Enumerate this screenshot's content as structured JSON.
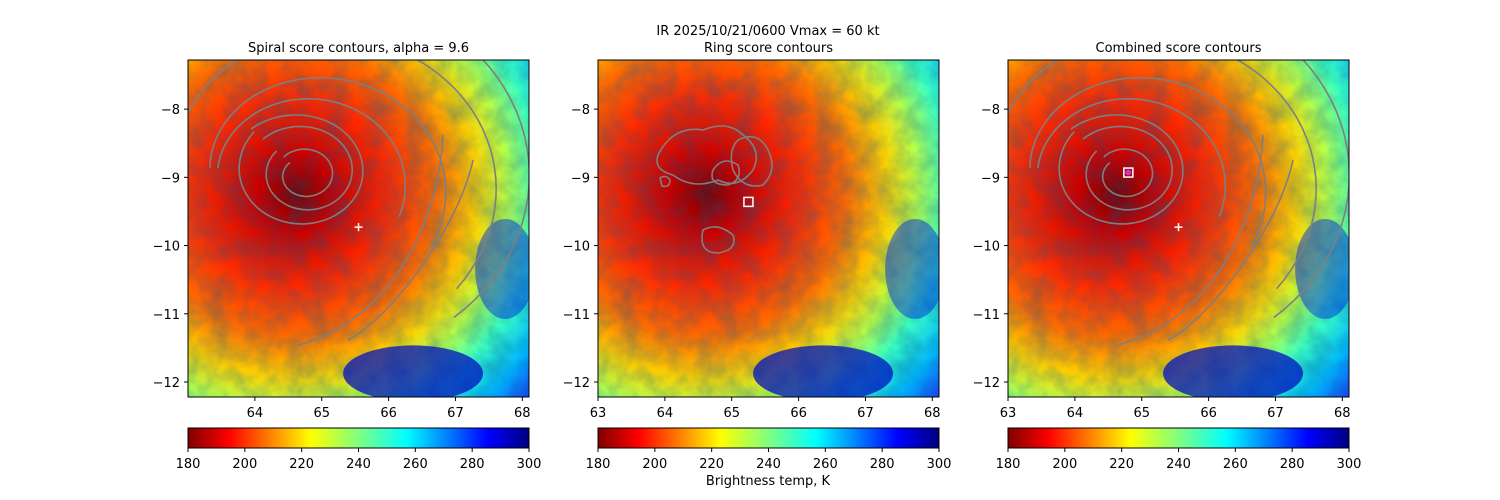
{
  "suptitle": "IR  2025/10/21/0600    Vmax = 60 kt",
  "colorbar_label": "Brightness temp, K",
  "contour_color": "#7f7f7f",
  "colormap": "jet_r",
  "chart_data": [
    {
      "type": "heatmap",
      "title": "Spiral score contours, alpha =  9.6",
      "xlim": [
        63.0,
        68.1
      ],
      "ylim": [
        -12.22,
        -7.28
      ],
      "xticks": [
        64,
        65,
        66,
        67,
        68
      ],
      "yticks": [
        -8,
        -9,
        -10,
        -11,
        -12
      ],
      "grid": false,
      "markers": [
        {
          "symbol": "plus",
          "color": "#ffffff",
          "x": 65.55,
          "y": -9.73
        }
      ],
      "colorbar": {
        "ticks": [
          180,
          200,
          220,
          240,
          260,
          280,
          300
        ],
        "range": [
          180,
          300
        ]
      }
    },
    {
      "type": "heatmap",
      "title": "Ring score contours",
      "xlim": [
        63.0,
        68.1
      ],
      "ylim": [
        -12.22,
        -7.28
      ],
      "xticks": [
        63,
        64,
        65,
        66,
        67,
        68
      ],
      "yticks": [
        -8,
        -9,
        -10,
        -11,
        -12
      ],
      "grid": false,
      "markers": [
        {
          "symbol": "square",
          "color": "#ffffff",
          "x": 65.25,
          "y": -9.36
        }
      ],
      "colorbar": {
        "ticks": [
          180,
          200,
          220,
          240,
          260,
          280,
          300
        ],
        "range": [
          180,
          300
        ]
      }
    },
    {
      "type": "heatmap",
      "title": "Combined score contours",
      "xlim": [
        63.0,
        68.1
      ],
      "ylim": [
        -12.22,
        -7.28
      ],
      "xticks": [
        63,
        64,
        65,
        66,
        67,
        68
      ],
      "yticks": [
        -8,
        -9,
        -10,
        -11,
        -12
      ],
      "grid": false,
      "markers": [
        {
          "symbol": "plus",
          "color": "#ffffff",
          "x": 65.55,
          "y": -9.73
        },
        {
          "symbol": "square",
          "color": "#ffffff",
          "x": 64.8,
          "y": -8.93
        },
        {
          "symbol": "circle",
          "color": "#cc33cc",
          "x": 64.8,
          "y": -8.93
        }
      ],
      "colorbar": {
        "ticks": [
          180,
          200,
          220,
          240,
          260,
          280,
          300
        ],
        "range": [
          180,
          300
        ]
      }
    }
  ]
}
